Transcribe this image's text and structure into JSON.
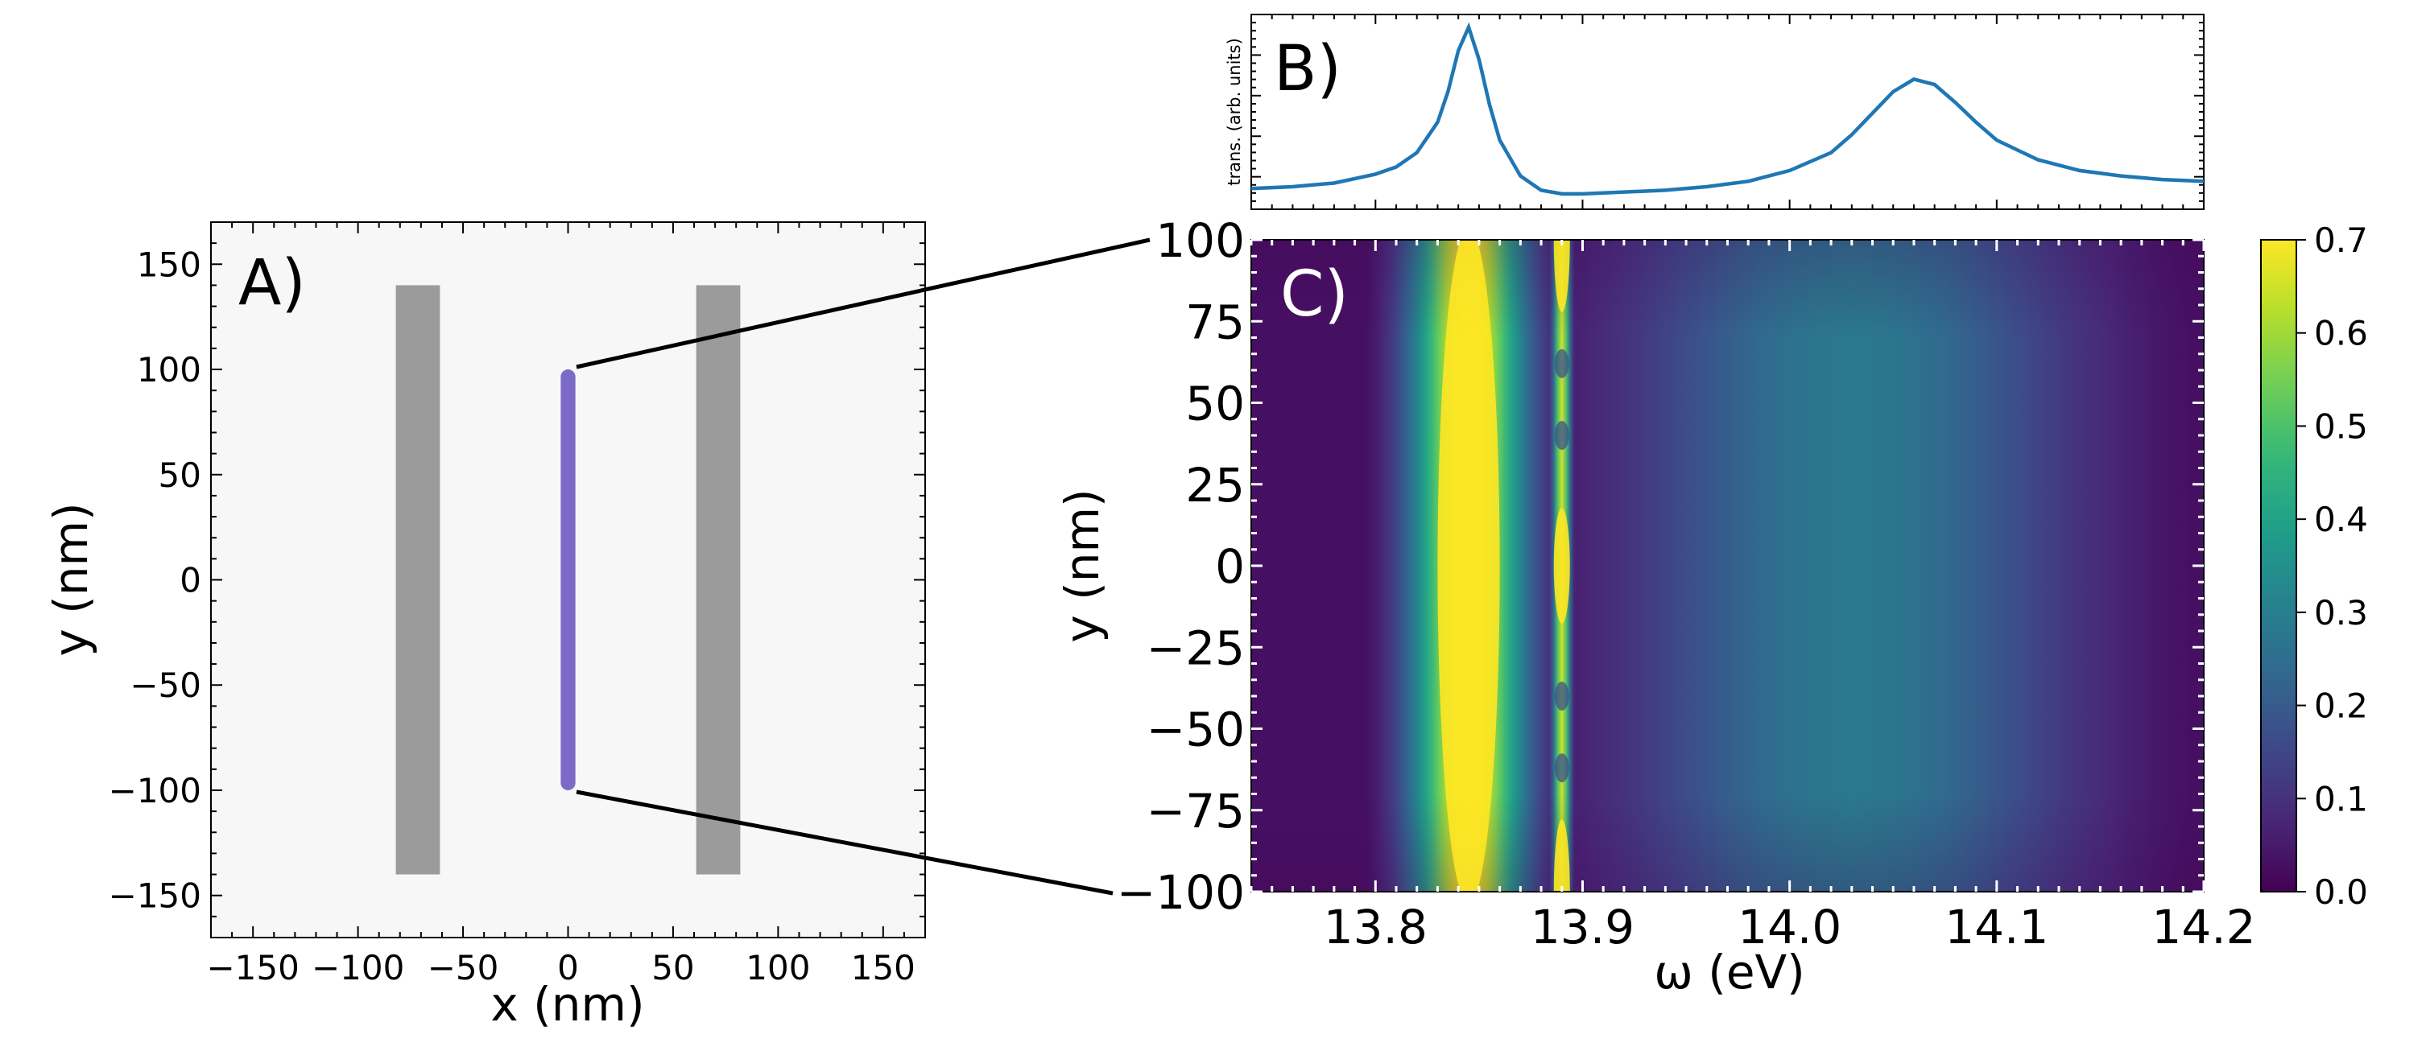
{
  "chart_data": [
    {
      "panel_label": "A)",
      "type": "diagram",
      "xlabel": "x (nm)",
      "ylabel": "y (nm)",
      "xlim": [
        -170,
        170
      ],
      "ylim": [
        -170,
        170
      ],
      "xticks": [
        -150,
        -100,
        -50,
        0,
        50,
        100,
        150
      ],
      "yticks": [
        -150,
        -100,
        -50,
        0,
        50,
        100,
        150
      ],
      "shapes": [
        {
          "kind": "rect",
          "x": [
            -82,
            -61
          ],
          "y": [
            -140,
            140
          ],
          "color": "#9b9b9b"
        },
        {
          "kind": "rect",
          "x": [
            61,
            82
          ],
          "y": [
            -140,
            140
          ],
          "color": "#9b9b9b"
        },
        {
          "kind": "rod",
          "x": 0,
          "y": [
            -100,
            100
          ],
          "width": 7,
          "color": "#7b6ac8"
        }
      ],
      "background_color": "#f7f7f7"
    },
    {
      "panel_label": "B)",
      "type": "line",
      "ylabel": "trans. (arb. units)",
      "xlim": [
        13.74,
        14.2
      ],
      "series": [
        {
          "color": "#1f77b4",
          "x": [
            13.74,
            13.76,
            13.78,
            13.8,
            13.81,
            13.82,
            13.83,
            13.835,
            13.84,
            13.845,
            13.85,
            13.855,
            13.86,
            13.87,
            13.88,
            13.89,
            13.9,
            13.92,
            13.94,
            13.96,
            13.98,
            14.0,
            14.02,
            14.03,
            14.04,
            14.05,
            14.06,
            14.07,
            14.08,
            14.09,
            14.1,
            14.12,
            14.14,
            14.16,
            14.18,
            14.2
          ],
          "y": [
            0.08,
            0.09,
            0.11,
            0.16,
            0.2,
            0.28,
            0.45,
            0.62,
            0.85,
            0.98,
            0.8,
            0.55,
            0.35,
            0.15,
            0.07,
            0.05,
            0.05,
            0.06,
            0.07,
            0.09,
            0.12,
            0.18,
            0.28,
            0.38,
            0.5,
            0.62,
            0.69,
            0.66,
            0.56,
            0.45,
            0.35,
            0.24,
            0.18,
            0.15,
            0.13,
            0.12
          ]
        }
      ]
    },
    {
      "panel_label": "C)",
      "type": "heatmap",
      "xlabel": "ω (eV)",
      "ylabel": "y (nm)",
      "xlim": [
        13.74,
        14.2
      ],
      "ylim": [
        -100,
        100
      ],
      "xticks": [
        13.8,
        13.9,
        14.0,
        14.1,
        14.2
      ],
      "yticks": [
        -100,
        -75,
        -50,
        -25,
        0,
        25,
        50,
        75,
        100
      ],
      "colormap": "viridis",
      "clim": [
        0.0,
        0.7
      ],
      "colorbar_ticks": [
        0.0,
        0.1,
        0.2,
        0.3,
        0.4,
        0.5,
        0.6,
        0.7
      ],
      "features": [
        {
          "name": "strong band",
          "omega_center": 13.845,
          "value": 0.7
        },
        {
          "name": "narrow band",
          "omega_center": 13.89,
          "value": 0.65
        },
        {
          "name": "broad band",
          "omega_center": 14.03,
          "value": 0.28
        }
      ]
    }
  ],
  "colors": {
    "line": "#1f77b4",
    "wall": "#9b9b9b",
    "rod": "#7b6ac8",
    "panel_bg": "#f7f7f7"
  }
}
